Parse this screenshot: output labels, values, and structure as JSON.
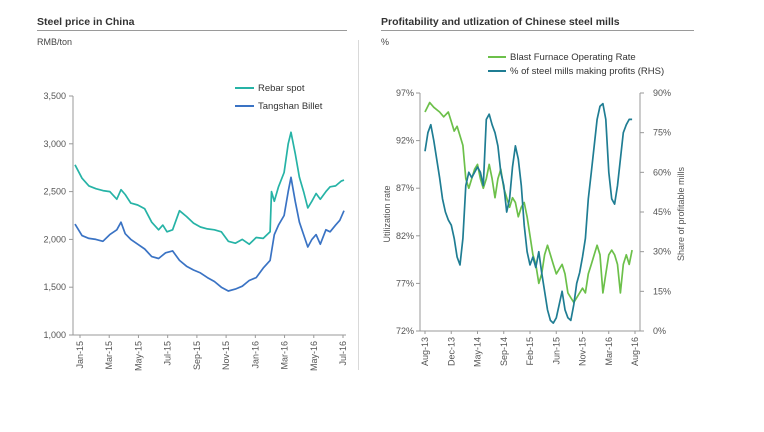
{
  "colors": {
    "teal": "#26b3a6",
    "blue": "#3a73c4",
    "green": "#6cc04a",
    "darkteal": "#1f7d93"
  },
  "left": {
    "title": "Steel price in China",
    "unit": "RMB/ton",
    "legend": [
      "Rebar spot",
      "Tangshan Billet"
    ]
  },
  "right": {
    "title": "Profitability and utlization of Chinese steel mills",
    "unit": "%",
    "legend": [
      "Blast Furnace Operating Rate",
      "% of steel mills making profits (RHS)"
    ],
    "ylabel_left": "Utilization rate",
    "ylabel_right": "Share of profitable mills"
  },
  "chart_data": [
    {
      "type": "line",
      "title": "Steel price in China",
      "ylabel": "RMB/ton",
      "ylim": [
        1000,
        3500
      ],
      "yticks": [
        "1,000",
        "1,500",
        "2,000",
        "2,500",
        "3,000",
        "3,500"
      ],
      "xticks": [
        "Jan-15",
        "Mar-15",
        "May-15",
        "Jul-15",
        "Sep-15",
        "Nov-15",
        "Jan-16",
        "Mar-16",
        "May-16",
        "Jul-16"
      ],
      "x_range": [
        0,
        19.3
      ],
      "legend_position": "top-right",
      "grid": false,
      "series": [
        {
          "name": "Rebar spot",
          "points": [
            [
              0,
              2780
            ],
            [
              0.5,
              2640
            ],
            [
              1,
              2560
            ],
            [
              1.5,
              2530
            ],
            [
              2,
              2510
            ],
            [
              2.5,
              2500
            ],
            [
              3,
              2420
            ],
            [
              3.3,
              2520
            ],
            [
              3.6,
              2470
            ],
            [
              4,
              2380
            ],
            [
              4.5,
              2360
            ],
            [
              5,
              2320
            ],
            [
              5.5,
              2180
            ],
            [
              6,
              2100
            ],
            [
              6.3,
              2150
            ],
            [
              6.6,
              2080
            ],
            [
              7,
              2100
            ],
            [
              7.5,
              2300
            ],
            [
              8,
              2240
            ],
            [
              8.5,
              2170
            ],
            [
              9,
              2130
            ],
            [
              9.5,
              2110
            ],
            [
              10,
              2100
            ],
            [
              10.5,
              2080
            ],
            [
              11,
              1980
            ],
            [
              11.5,
              1960
            ],
            [
              12,
              2000
            ],
            [
              12.5,
              1950
            ],
            [
              13,
              2020
            ],
            [
              13.5,
              2010
            ],
            [
              14,
              2080
            ],
            [
              14.1,
              2500
            ],
            [
              14.3,
              2400
            ],
            [
              14.6,
              2550
            ],
            [
              15,
              2700
            ],
            [
              15.3,
              3000
            ],
            [
              15.5,
              3120
            ],
            [
              15.8,
              2900
            ],
            [
              16.1,
              2650
            ],
            [
              16.4,
              2500
            ],
            [
              16.7,
              2330
            ],
            [
              17,
              2400
            ],
            [
              17.3,
              2480
            ],
            [
              17.6,
              2420
            ],
            [
              18,
              2500
            ],
            [
              18.3,
              2550
            ],
            [
              18.7,
              2560
            ],
            [
              19.1,
              2610
            ],
            [
              19.3,
              2620
            ]
          ]
        },
        {
          "name": "Tangshan Billet",
          "points": [
            [
              0,
              2160
            ],
            [
              0.5,
              2040
            ],
            [
              1,
              2010
            ],
            [
              1.5,
              2000
            ],
            [
              2,
              1980
            ],
            [
              2.5,
              2050
            ],
            [
              3,
              2100
            ],
            [
              3.3,
              2180
            ],
            [
              3.6,
              2060
            ],
            [
              4,
              2000
            ],
            [
              4.5,
              1950
            ],
            [
              5,
              1900
            ],
            [
              5.5,
              1820
            ],
            [
              6,
              1800
            ],
            [
              6.5,
              1860
            ],
            [
              7,
              1880
            ],
            [
              7.5,
              1780
            ],
            [
              8,
              1720
            ],
            [
              8.5,
              1680
            ],
            [
              9,
              1650
            ],
            [
              9.5,
              1600
            ],
            [
              10,
              1560
            ],
            [
              10.5,
              1500
            ],
            [
              11,
              1460
            ],
            [
              11.5,
              1480
            ],
            [
              12,
              1510
            ],
            [
              12.5,
              1570
            ],
            [
              13,
              1600
            ],
            [
              13.5,
              1700
            ],
            [
              14,
              1780
            ],
            [
              14.3,
              2050
            ],
            [
              14.6,
              2150
            ],
            [
              15,
              2250
            ],
            [
              15.3,
              2500
            ],
            [
              15.5,
              2650
            ],
            [
              15.8,
              2400
            ],
            [
              16.1,
              2180
            ],
            [
              16.4,
              2050
            ],
            [
              16.7,
              1920
            ],
            [
              17,
              2000
            ],
            [
              17.3,
              2050
            ],
            [
              17.6,
              1950
            ],
            [
              18,
              2100
            ],
            [
              18.3,
              2080
            ],
            [
              18.7,
              2150
            ],
            [
              19,
              2200
            ],
            [
              19.3,
              2300
            ]
          ]
        }
      ]
    },
    {
      "type": "line",
      "title": "Profitability and utlization of Chinese steel mills",
      "ylabel": "Utilization rate",
      "ylabel_right": "Share of profitable mills",
      "ylim": [
        72,
        97
      ],
      "ylim_right": [
        0,
        90
      ],
      "yticks": [
        "72%",
        "77%",
        "82%",
        "87%",
        "92%",
        "97%"
      ],
      "yticks_right": [
        "0%",
        "15%",
        "30%",
        "45%",
        "60%",
        "75%",
        "90%"
      ],
      "xticks": [
        "Aug-13",
        "Dec-13",
        "May-14",
        "Sep-14",
        "Feb-15",
        "Jun-15",
        "Nov-15",
        "Mar-16",
        "Aug-16"
      ],
      "x_range": [
        0,
        36
      ],
      "legend_position": "top",
      "grid": false,
      "series": [
        {
          "name": "Blast Furnace Operating Rate",
          "axis": "left",
          "points": [
            [
              0,
              95
            ],
            [
              0.8,
              96
            ],
            [
              1.5,
              95.5
            ],
            [
              2.5,
              95
            ],
            [
              3.2,
              94.5
            ],
            [
              4,
              95
            ],
            [
              4.5,
              94
            ],
            [
              5,
              93
            ],
            [
              5.5,
              93.5
            ],
            [
              6,
              92.5
            ],
            [
              6.5,
              91.5
            ],
            [
              7,
              88
            ],
            [
              7.5,
              87
            ],
            [
              8,
              88
            ],
            [
              8.5,
              89
            ],
            [
              9,
              89.5
            ],
            [
              9.5,
              88
            ],
            [
              10,
              87
            ],
            [
              10.5,
              88
            ],
            [
              11,
              89.5
            ],
            [
              11.5,
              88
            ],
            [
              12,
              86
            ],
            [
              12.5,
              88
            ],
            [
              13,
              89
            ],
            [
              13.5,
              87
            ],
            [
              14,
              86
            ],
            [
              14.5,
              85
            ],
            [
              15,
              86
            ],
            [
              15.5,
              85.5
            ],
            [
              16,
              84
            ],
            [
              16.5,
              85
            ],
            [
              17,
              85.5
            ],
            [
              17.5,
              84
            ],
            [
              18,
              82
            ],
            [
              18.5,
              80
            ],
            [
              19,
              79
            ],
            [
              19.5,
              77
            ],
            [
              20,
              78
            ],
            [
              20.5,
              80
            ],
            [
              21,
              81
            ],
            [
              21.5,
              80
            ],
            [
              22,
              79
            ],
            [
              22.5,
              78
            ],
            [
              23,
              78.5
            ],
            [
              23.5,
              79
            ],
            [
              24,
              78
            ],
            [
              24.5,
              76
            ],
            [
              25,
              75.5
            ],
            [
              25.5,
              75
            ],
            [
              26,
              75.5
            ],
            [
              26.5,
              76
            ],
            [
              27,
              76.5
            ],
            [
              27.5,
              76
            ],
            [
              28,
              78
            ],
            [
              28.5,
              79
            ],
            [
              29,
              80
            ],
            [
              29.5,
              81
            ],
            [
              30,
              80
            ],
            [
              30.5,
              76
            ],
            [
              31,
              78
            ],
            [
              31.5,
              80
            ],
            [
              32,
              80.5
            ],
            [
              32.5,
              80
            ],
            [
              33,
              79
            ],
            [
              33.5,
              76
            ],
            [
              34,
              79
            ],
            [
              34.5,
              80
            ],
            [
              35,
              79
            ],
            [
              35.5,
              80.5
            ]
          ]
        },
        {
          "name": "% of steel mills making profits (RHS)",
          "axis": "right",
          "points": [
            [
              0,
              68
            ],
            [
              0.5,
              75
            ],
            [
              1,
              78
            ],
            [
              1.5,
              72
            ],
            [
              2,
              65
            ],
            [
              2.5,
              58
            ],
            [
              3,
              50
            ],
            [
              3.5,
              45
            ],
            [
              4,
              42
            ],
            [
              4.5,
              40
            ],
            [
              5,
              35
            ],
            [
              5.5,
              28
            ],
            [
              6,
              25
            ],
            [
              6.5,
              35
            ],
            [
              7,
              55
            ],
            [
              7.5,
              60
            ],
            [
              8,
              58
            ],
            [
              8.5,
              60
            ],
            [
              9,
              62
            ],
            [
              9.5,
              60
            ],
            [
              10,
              55
            ],
            [
              10.5,
              80
            ],
            [
              11,
              82
            ],
            [
              11.5,
              78
            ],
            [
              12,
              75
            ],
            [
              12.5,
              70
            ],
            [
              13,
              60
            ],
            [
              13.5,
              55
            ],
            [
              14,
              45
            ],
            [
              14.5,
              50
            ],
            [
              15,
              62
            ],
            [
              15.5,
              70
            ],
            [
              16,
              65
            ],
            [
              16.5,
              55
            ],
            [
              17,
              40
            ],
            [
              17.5,
              30
            ],
            [
              18,
              25
            ],
            [
              18.5,
              28
            ],
            [
              19,
              24
            ],
            [
              19.5,
              30
            ],
            [
              20,
              22
            ],
            [
              20.5,
              15
            ],
            [
              21,
              8
            ],
            [
              21.5,
              4
            ],
            [
              22,
              3
            ],
            [
              22.5,
              5
            ],
            [
              23,
              10
            ],
            [
              23.5,
              15
            ],
            [
              24,
              8
            ],
            [
              24.5,
              5
            ],
            [
              25,
              4
            ],
            [
              25.5,
              10
            ],
            [
              26,
              18
            ],
            [
              26.5,
              22
            ],
            [
              27,
              28
            ],
            [
              27.5,
              35
            ],
            [
              28,
              50
            ],
            [
              28.5,
              60
            ],
            [
              29,
              70
            ],
            [
              29.5,
              80
            ],
            [
              30,
              85
            ],
            [
              30.5,
              86
            ],
            [
              31,
              80
            ],
            [
              31.5,
              60
            ],
            [
              32,
              50
            ],
            [
              32.5,
              48
            ],
            [
              33,
              55
            ],
            [
              33.5,
              65
            ],
            [
              34,
              75
            ],
            [
              34.5,
              78
            ],
            [
              35,
              80
            ],
            [
              35.5,
              80
            ]
          ]
        }
      ]
    }
  ]
}
